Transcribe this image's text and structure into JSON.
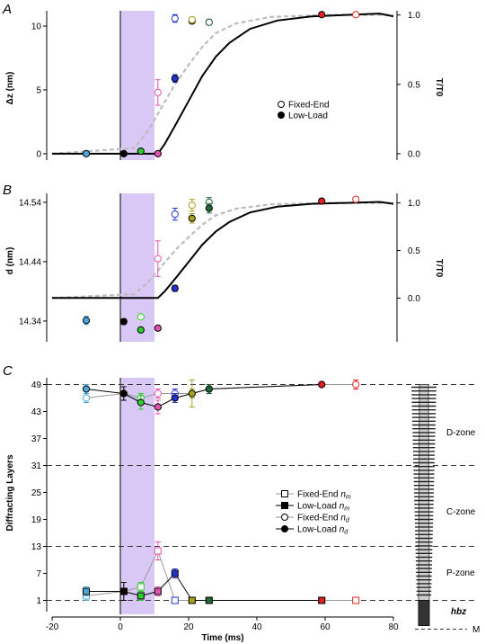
{
  "figure": {
    "xlabel": "Time (ms)",
    "xlim": [
      -20,
      80
    ],
    "xticks": [
      -20,
      0,
      20,
      40,
      60,
      80
    ],
    "stimulus_window": [
      0,
      10
    ],
    "stimulus_color": "#d9c8f6"
  },
  "chart_data": [
    {
      "id": "A",
      "panel_label": "A",
      "type": "scatter",
      "ylabel": "Δz (nm)",
      "ylim": [
        -0.5,
        11.2
      ],
      "yticks": [
        0,
        5,
        10
      ],
      "y2label": "T/T0",
      "y2lim": [
        -0.046,
        1.03
      ],
      "y2ticks": [
        0.0,
        0.5,
        1.0
      ],
      "legend": [
        "Fixed-End",
        "Low-Load"
      ],
      "tension_fixed_end": [
        [
          -20,
          0
        ],
        [
          4,
          0.04
        ],
        [
          8,
          0.16
        ],
        [
          12,
          0.33
        ],
        [
          16,
          0.5
        ],
        [
          20,
          0.64
        ],
        [
          24,
          0.77
        ],
        [
          28,
          0.87
        ],
        [
          34,
          0.94
        ],
        [
          44,
          0.985
        ],
        [
          60,
          1.0
        ],
        [
          80,
          1.0
        ]
      ],
      "tension_low_load": [
        [
          -20,
          0
        ],
        [
          11,
          0
        ],
        [
          13,
          0.07
        ],
        [
          16,
          0.2
        ],
        [
          20,
          0.38
        ],
        [
          24,
          0.56
        ],
        [
          28,
          0.7
        ],
        [
          32,
          0.8
        ],
        [
          38,
          0.9
        ],
        [
          46,
          0.96
        ],
        [
          56,
          0.99
        ],
        [
          66,
          1.0
        ],
        [
          76,
          1.01
        ],
        [
          80,
          0.99
        ]
      ],
      "points": [
        {
          "x": -10,
          "y": 0,
          "err": 0,
          "filled": true,
          "color": "#4aa6d8"
        },
        {
          "x": 1,
          "y": 0,
          "err": 0,
          "filled": true,
          "color": "#000000"
        },
        {
          "x": 6,
          "y": 0.2,
          "err": 0,
          "filled": true,
          "color": "#2fce2f"
        },
        {
          "x": 11,
          "y": 0,
          "err": 0,
          "filled": true,
          "color": "#e452b0"
        },
        {
          "x": 11,
          "y": 4.8,
          "err": 1.0,
          "filled": false,
          "color": "#e452b0"
        },
        {
          "x": 16,
          "y": 5.9,
          "err": 0.3,
          "filled": true,
          "color": "#2233cc"
        },
        {
          "x": 16,
          "y": 10.6,
          "err": 0.3,
          "filled": false,
          "color": "#2233cc"
        },
        {
          "x": 21,
          "y": 10.4,
          "err": 0.2,
          "filled": true,
          "color": "#a7a11f"
        },
        {
          "x": 21,
          "y": 10.5,
          "err": 0.2,
          "filled": false,
          "color": "#a7a11f"
        },
        {
          "x": 26,
          "y": 10.3,
          "err": 0.2,
          "filled": true,
          "color": "#1f6b38"
        },
        {
          "x": 26,
          "y": 10.3,
          "err": 0.2,
          "filled": false,
          "color": "#1f6b38"
        },
        {
          "x": 59,
          "y": 10.9,
          "err": 0,
          "filled": true,
          "color": "#e02121"
        },
        {
          "x": 69,
          "y": 10.9,
          "err": 0,
          "filled": false,
          "color": "#e02121"
        }
      ]
    },
    {
      "id": "B",
      "panel_label": "B",
      "type": "scatter",
      "ylabel": "d (nm)",
      "ylim": [
        14.305,
        14.555
      ],
      "yticks": [
        14.34,
        14.44,
        14.54
      ],
      "y2label": "T/T0",
      "y2lim": [
        -0.46,
        1.1
      ],
      "y2ticks": [
        0.0,
        0.5,
        1.0
      ],
      "tension_fixed_end": [
        [
          -20,
          0
        ],
        [
          4,
          0.04
        ],
        [
          8,
          0.16
        ],
        [
          12,
          0.33
        ],
        [
          16,
          0.5
        ],
        [
          20,
          0.64
        ],
        [
          24,
          0.77
        ],
        [
          28,
          0.87
        ],
        [
          34,
          0.94
        ],
        [
          44,
          0.985
        ],
        [
          60,
          1.0
        ],
        [
          80,
          1.0
        ]
      ],
      "tension_low_load": [
        [
          -20,
          0
        ],
        [
          11,
          0
        ],
        [
          13,
          0.07
        ],
        [
          16,
          0.2
        ],
        [
          20,
          0.38
        ],
        [
          24,
          0.56
        ],
        [
          28,
          0.7
        ],
        [
          32,
          0.8
        ],
        [
          38,
          0.9
        ],
        [
          46,
          0.96
        ],
        [
          56,
          0.99
        ],
        [
          66,
          1.0
        ],
        [
          76,
          1.01
        ],
        [
          80,
          0.99
        ]
      ],
      "points": [
        {
          "x": -10,
          "y": 14.341,
          "err": 0.007,
          "filled": true,
          "color": "#4aa6d8"
        },
        {
          "x": 1,
          "y": 14.339,
          "err": 0.004,
          "filled": true,
          "color": "#000000"
        },
        {
          "x": 6,
          "y": 14.347,
          "err": 0.003,
          "filled": false,
          "color": "#2fce2f"
        },
        {
          "x": 6,
          "y": 14.325,
          "err": 0.002,
          "filled": true,
          "color": "#2fce2f"
        },
        {
          "x": 11,
          "y": 14.445,
          "err": 0.03,
          "filled": false,
          "color": "#e452b0"
        },
        {
          "x": 11,
          "y": 14.328,
          "err": 0.003,
          "filled": true,
          "color": "#e452b0"
        },
        {
          "x": 16,
          "y": 14.52,
          "err": 0.01,
          "filled": false,
          "color": "#2233cc"
        },
        {
          "x": 16,
          "y": 14.395,
          "err": 0.005,
          "filled": true,
          "color": "#2233cc"
        },
        {
          "x": 21,
          "y": 14.535,
          "err": 0.01,
          "filled": false,
          "color": "#a7a11f"
        },
        {
          "x": 21,
          "y": 14.513,
          "err": 0.008,
          "filled": true,
          "color": "#a7a11f"
        },
        {
          "x": 26,
          "y": 14.54,
          "err": 0.008,
          "filled": false,
          "color": "#1f6b38"
        },
        {
          "x": 26,
          "y": 14.53,
          "err": 0.008,
          "filled": true,
          "color": "#1f6b38"
        },
        {
          "x": 59,
          "y": 14.542,
          "err": 0.004,
          "filled": true,
          "color": "#e02121"
        },
        {
          "x": 69,
          "y": 14.545,
          "err": 0,
          "filled": false,
          "color": "#e02121"
        }
      ]
    },
    {
      "id": "C",
      "panel_label": "C",
      "type": "line",
      "ylabel": "Diffracting Layers",
      "ylim": [
        -1.5,
        50.5
      ],
      "yticks": [
        1,
        7,
        13,
        19,
        25,
        31,
        37,
        43,
        49
      ],
      "dashed_lines": [
        49,
        31,
        13,
        1
      ],
      "legend": [
        {
          "label": "Fixed-End ",
          "sub": "m",
          "marker": "square",
          "filled": false
        },
        {
          "label": "Low-Load ",
          "sub": "m",
          "marker": "square",
          "filled": true
        },
        {
          "label": "Fixed-End ",
          "sub": "d",
          "marker": "circle",
          "filled": false
        },
        {
          "label": "Low-Load ",
          "sub": "d",
          "marker": "circle",
          "filled": true
        }
      ],
      "series": [
        {
          "name": "Fixed-End n_d",
          "marker": "circle",
          "filled": false,
          "points": [
            {
              "x": -10,
              "y": 46,
              "err": 1,
              "color": "#4aa6d8"
            },
            {
              "x": 1,
              "y": 47,
              "err": 0,
              "color": "#000000"
            },
            {
              "x": 6,
              "y": 46,
              "err": 1,
              "color": "#2fce2f"
            },
            {
              "x": 11,
              "y": 47,
              "err": 1,
              "color": "#e452b0"
            },
            {
              "x": 16,
              "y": 47,
              "err": 1,
              "color": "#2233cc"
            },
            {
              "x": 21,
              "y": 47,
              "err": 1,
              "color": "#a7a11f"
            },
            {
              "x": 26,
              "y": 48,
              "err": 1,
              "color": "#1f6b38"
            },
            {
              "x": 59,
              "y": 49,
              "err": 0,
              "color": "#e02121"
            },
            {
              "x": 69,
              "y": 49,
              "err": 1,
              "color": "#e02121"
            }
          ]
        },
        {
          "name": "Low-Load n_d",
          "marker": "circle",
          "filled": true,
          "points": [
            {
              "x": -10,
              "y": 48,
              "err": 1,
              "color": "#4aa6d8"
            },
            {
              "x": 1,
              "y": 47,
              "err": 1.5,
              "color": "#000000"
            },
            {
              "x": 6,
              "y": 45,
              "err": 1.5,
              "color": "#2fce2f"
            },
            {
              "x": 11,
              "y": 44,
              "err": 1.5,
              "color": "#e452b0"
            },
            {
              "x": 16,
              "y": 46,
              "err": 1,
              "color": "#2233cc"
            },
            {
              "x": 21,
              "y": 47,
              "err": 3,
              "color": "#a7a11f"
            },
            {
              "x": 26,
              "y": 48,
              "err": 1,
              "color": "#1f6b38"
            },
            {
              "x": 59,
              "y": 49,
              "err": 0,
              "color": "#e02121"
            }
          ]
        },
        {
          "name": "Fixed-End n_m",
          "marker": "square",
          "filled": false,
          "points": [
            {
              "x": -10,
              "y": 2,
              "err": 1,
              "color": "#4aa6d8"
            },
            {
              "x": 1,
              "y": 3,
              "err": 0,
              "color": "#000000"
            },
            {
              "x": 6,
              "y": 4,
              "err": 1,
              "color": "#2fce2f"
            },
            {
              "x": 11,
              "y": 12,
              "err": 2,
              "color": "#e452b0"
            },
            {
              "x": 16,
              "y": 1,
              "err": 0,
              "color": "#2233cc"
            },
            {
              "x": 21,
              "y": 1,
              "err": 0,
              "color": "#a7a11f"
            },
            {
              "x": 26,
              "y": 1,
              "err": 0,
              "color": "#1f6b38"
            },
            {
              "x": 59,
              "y": 1,
              "err": 0,
              "color": "#e02121"
            },
            {
              "x": 69,
              "y": 1,
              "err": 0,
              "color": "#e02121"
            }
          ]
        },
        {
          "name": "Low-Load n_m",
          "marker": "square",
          "filled": true,
          "points": [
            {
              "x": -10,
              "y": 3,
              "err": 1,
              "color": "#4aa6d8"
            },
            {
              "x": 1,
              "y": 3,
              "err": 2,
              "color": "#000000"
            },
            {
              "x": 6,
              "y": 2,
              "err": 1,
              "color": "#2fce2f"
            },
            {
              "x": 11,
              "y": 3,
              "err": 1,
              "color": "#e452b0"
            },
            {
              "x": 16,
              "y": 7,
              "err": 1,
              "color": "#2233cc"
            },
            {
              "x": 21,
              "y": 1,
              "err": 0,
              "color": "#a7a11f"
            },
            {
              "x": 26,
              "y": 1,
              "err": 0,
              "color": "#1f6b38"
            },
            {
              "x": 59,
              "y": 1,
              "err": 0,
              "color": "#e02121"
            }
          ]
        }
      ]
    }
  ],
  "schematic": {
    "zones": [
      "D-zone",
      "C-zone",
      "P-zone"
    ],
    "hbz_label": "hbz",
    "m_label": "M"
  }
}
